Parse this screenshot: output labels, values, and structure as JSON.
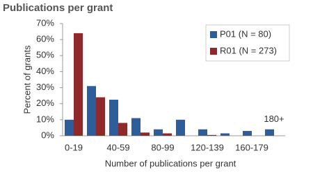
{
  "chart_data": {
    "type": "bar",
    "title": "Publications per grant",
    "x_label": "Number of publications per grant",
    "y_label": "Percent of grants",
    "categories": [
      "0-19",
      null,
      "40-59",
      null,
      "80-99",
      null,
      "120-139",
      null,
      "160-179",
      null
    ],
    "series": [
      {
        "name": "P01 (N = 80)",
        "color": "#2f5d9b",
        "values": [
          10,
          31,
          22.5,
          11,
          4,
          10,
          4,
          1.5,
          3,
          4
        ]
      },
      {
        "name": "R01 (N = 273)",
        "color": "#8e2a2c",
        "values": [
          64,
          24,
          8,
          2,
          1.5,
          0,
          0.5,
          0,
          0,
          0
        ]
      }
    ],
    "annotation": "180+",
    "ylim": [
      0,
      70
    ],
    "yticks": [
      {
        "value": 0,
        "label": "0%"
      },
      {
        "value": 10,
        "label": "10%"
      },
      {
        "value": 20,
        "label": "20%"
      },
      {
        "value": 30,
        "label": "30%"
      },
      {
        "value": 40,
        "label": "40%"
      },
      {
        "value": 50,
        "label": "50%"
      },
      {
        "value": 60,
        "label": "60%"
      },
      {
        "value": 70,
        "label": "70%"
      }
    ],
    "legend": "top-right"
  }
}
